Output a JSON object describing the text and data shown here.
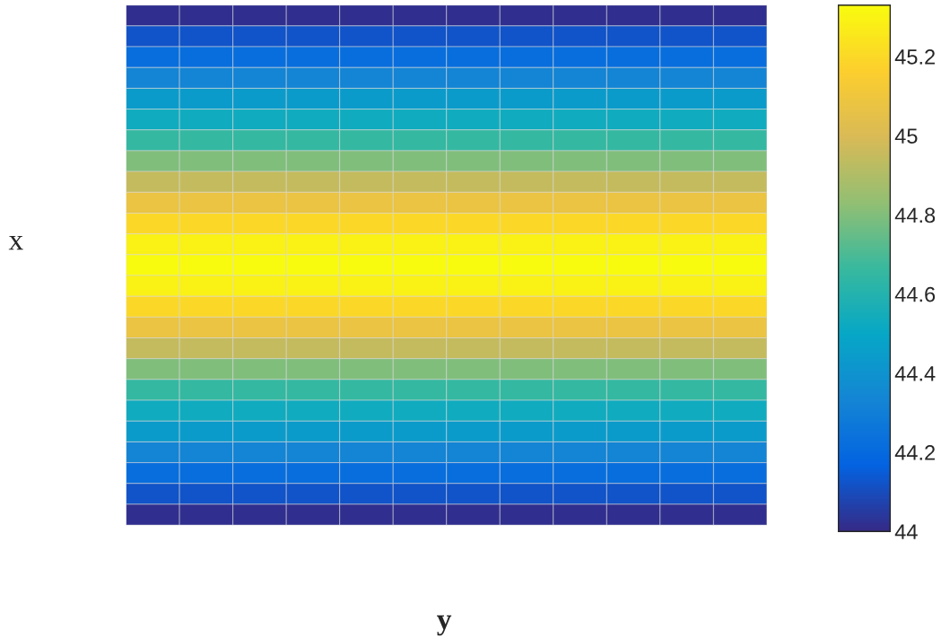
{
  "chart_data": {
    "type": "heatmap",
    "xlabel": "y",
    "ylabel": "x",
    "categories": [
      null,
      null,
      null,
      null,
      null,
      null,
      null,
      null,
      null,
      null,
      null,
      null
    ],
    "y_categories": [
      null,
      null,
      null,
      null,
      null,
      null,
      null,
      null,
      null,
      null,
      null,
      null,
      null,
      null,
      null,
      null,
      null,
      null,
      null,
      null,
      null,
      null,
      null,
      null,
      null
    ],
    "cells": [
      [
        44.02,
        44.02,
        44.02,
        44.02,
        44.02,
        44.02,
        44.02,
        44.02,
        44.02,
        44.02,
        44.02,
        44.02
      ],
      [
        44.12,
        44.12,
        44.12,
        44.12,
        44.12,
        44.12,
        44.12,
        44.12,
        44.12,
        44.12,
        44.12,
        44.12
      ],
      [
        44.22,
        44.22,
        44.22,
        44.22,
        44.22,
        44.22,
        44.22,
        44.22,
        44.22,
        44.22,
        44.22,
        44.22
      ],
      [
        44.33,
        44.33,
        44.33,
        44.33,
        44.33,
        44.33,
        44.33,
        44.33,
        44.33,
        44.33,
        44.33,
        44.33
      ],
      [
        44.44,
        44.44,
        44.44,
        44.44,
        44.44,
        44.44,
        44.44,
        44.44,
        44.44,
        44.44,
        44.44,
        44.44
      ],
      [
        44.53,
        44.53,
        44.53,
        44.53,
        44.53,
        44.53,
        44.53,
        44.53,
        44.53,
        44.53,
        44.53,
        44.53
      ],
      [
        44.65,
        44.65,
        44.65,
        44.65,
        44.65,
        44.65,
        44.65,
        44.65,
        44.65,
        44.65,
        44.65,
        44.65
      ],
      [
        44.8,
        44.8,
        44.8,
        44.8,
        44.8,
        44.8,
        44.8,
        44.8,
        44.8,
        44.8,
        44.8,
        44.8
      ],
      [
        44.95,
        44.95,
        44.95,
        44.95,
        44.95,
        44.95,
        44.95,
        44.95,
        44.95,
        44.95,
        44.95,
        44.95
      ],
      [
        45.08,
        45.08,
        45.08,
        45.08,
        45.08,
        45.08,
        45.08,
        45.08,
        45.08,
        45.08,
        45.08,
        45.08
      ],
      [
        45.2,
        45.2,
        45.2,
        45.2,
        45.2,
        45.2,
        45.2,
        45.2,
        45.2,
        45.2,
        45.2,
        45.2
      ],
      [
        45.29,
        45.29,
        45.29,
        45.29,
        45.29,
        45.29,
        45.29,
        45.29,
        45.29,
        45.29,
        45.29,
        45.29
      ],
      [
        45.33,
        45.33,
        45.33,
        45.33,
        45.33,
        45.33,
        45.33,
        45.33,
        45.33,
        45.33,
        45.33,
        45.33
      ],
      [
        45.29,
        45.29,
        45.29,
        45.29,
        45.29,
        45.29,
        45.29,
        45.29,
        45.29,
        45.29,
        45.29,
        45.29
      ],
      [
        45.2,
        45.2,
        45.2,
        45.2,
        45.2,
        45.2,
        45.2,
        45.2,
        45.2,
        45.2,
        45.2,
        45.2
      ],
      [
        45.08,
        45.08,
        45.08,
        45.08,
        45.08,
        45.08,
        45.08,
        45.08,
        45.08,
        45.08,
        45.08,
        45.08
      ],
      [
        44.95,
        44.95,
        44.95,
        44.95,
        44.95,
        44.95,
        44.95,
        44.95,
        44.95,
        44.95,
        44.95,
        44.95
      ],
      [
        44.8,
        44.8,
        44.8,
        44.8,
        44.8,
        44.8,
        44.8,
        44.8,
        44.8,
        44.8,
        44.8,
        44.8
      ],
      [
        44.65,
        44.65,
        44.65,
        44.65,
        44.65,
        44.65,
        44.65,
        44.65,
        44.65,
        44.65,
        44.65,
        44.65
      ],
      [
        44.53,
        44.53,
        44.53,
        44.53,
        44.53,
        44.53,
        44.53,
        44.53,
        44.53,
        44.53,
        44.53,
        44.53
      ],
      [
        44.44,
        44.44,
        44.44,
        44.44,
        44.44,
        44.44,
        44.44,
        44.44,
        44.44,
        44.44,
        44.44,
        44.44
      ],
      [
        44.33,
        44.33,
        44.33,
        44.33,
        44.33,
        44.33,
        44.33,
        44.33,
        44.33,
        44.33,
        44.33,
        44.33
      ],
      [
        44.22,
        44.22,
        44.22,
        44.22,
        44.22,
        44.22,
        44.22,
        44.22,
        44.22,
        44.22,
        44.22,
        44.22
      ],
      [
        44.12,
        44.12,
        44.12,
        44.12,
        44.12,
        44.12,
        44.12,
        44.12,
        44.12,
        44.12,
        44.12,
        44.12
      ],
      [
        44.02,
        44.02,
        44.02,
        44.02,
        44.02,
        44.02,
        44.02,
        44.02,
        44.02,
        44.02,
        44.02,
        44.02
      ]
    ],
    "clim": [
      44,
      45.33
    ],
    "cticks": [
      44,
      44.2,
      44.4,
      44.6,
      44.8,
      45,
      45.2
    ],
    "tick_labels": false
  }
}
